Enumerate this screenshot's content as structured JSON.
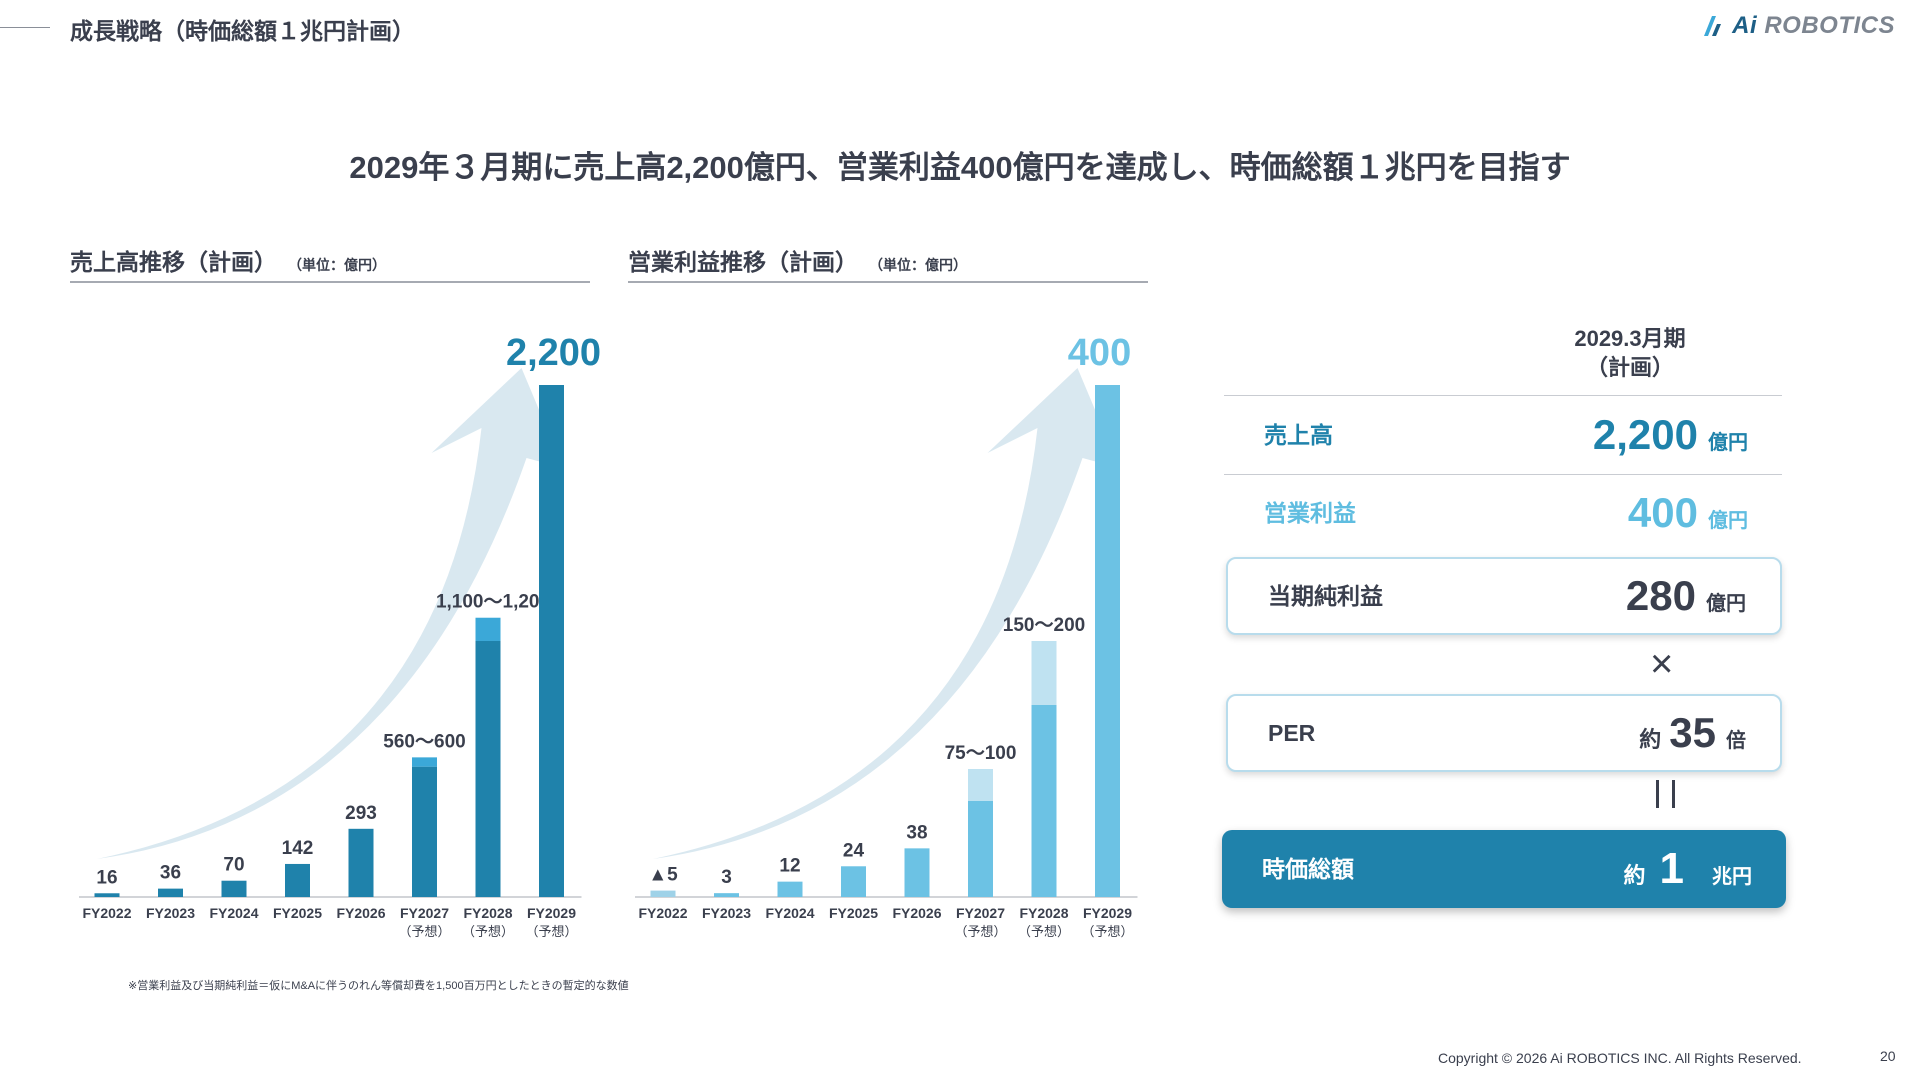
{
  "header": {
    "section_title": "成長戦略（時価総額１兆円計画）",
    "logo_text_ai": "Ai",
    "logo_text_rest": "ROBOTICS"
  },
  "headline": "2029年３月期に売上高2,200億円、営業利益400億円を達成し、時価総額１兆円を目指す",
  "chart_data": [
    {
      "type": "bar",
      "title": "売上高推移（計画）",
      "unit_note": "（単位：億円）",
      "categories": [
        "FY2022",
        "FY2023",
        "FY2024",
        "FY2025",
        "FY2026",
        "FY2027",
        "FY2028",
        "FY2029"
      ],
      "category_sublabels": [
        "",
        "",
        "",
        "",
        "",
        "（予想）",
        "（予想）",
        "（予想）"
      ],
      "series": [
        {
          "values": [
            16,
            36,
            70,
            142,
            293,
            560,
            1100,
            2200
          ]
        },
        {
          "values": [
            0,
            0,
            0,
            0,
            0,
            40,
            100,
            0
          ]
        }
      ],
      "data_labels": [
        "16",
        "36",
        "70",
        "142",
        "293",
        "560〜600",
        "1,100〜1,200",
        "2,200"
      ],
      "ylim": [
        0,
        2200
      ],
      "colors": {
        "bar": "#1f82ab",
        "range": "#3ba8d8",
        "arrow": "#d5e6ee",
        "highlight_label": "#1f82ab"
      }
    },
    {
      "type": "bar",
      "title": "営業利益推移（計画）",
      "unit_note": "（単位：億円）",
      "categories": [
        "FY2022",
        "FY2023",
        "FY2024",
        "FY2025",
        "FY2026",
        "FY2027",
        "FY2028",
        "FY2029"
      ],
      "category_sublabels": [
        "",
        "",
        "",
        "",
        "",
        "（予想）",
        "（予想）",
        "（予想）"
      ],
      "series": [
        {
          "values": [
            -5,
            3,
            12,
            24,
            38,
            75,
            150,
            400
          ]
        },
        {
          "values": [
            0,
            0,
            0,
            0,
            0,
            25,
            50,
            0
          ]
        }
      ],
      "data_labels": [
        "▲5",
        "3",
        "12",
        "24",
        "38",
        "75〜100",
        "150〜200",
        "400"
      ],
      "ylim": [
        0,
        400
      ],
      "colors": {
        "bar": "#6cc2e4",
        "range": "#bfe2f1",
        "arrow": "#d5e6ee",
        "highlight_label": "#6cc2e4"
      }
    }
  ],
  "footnote": "※営業利益及び当期純利益＝仮にM&Aに伴うのれん等償却費を1,500百万円としたときの暫定的な数値",
  "summary": {
    "period_line1": "2029.3月期",
    "period_line2": "（計画）",
    "sales": {
      "label": "売上高",
      "value": "2,200",
      "unit": "億円"
    },
    "operating_profit": {
      "label": "営業利益",
      "value": "400",
      "unit": "億円"
    },
    "net_income": {
      "label": "当期純利益",
      "value": "280",
      "unit": "億円"
    },
    "times_symbol": "×",
    "per": {
      "label": "PER",
      "prefix": "約",
      "value": "35",
      "unit": "倍"
    },
    "market_cap": {
      "label": "時価総額",
      "prefix": "約",
      "value": "1",
      "unit": "兆円"
    }
  },
  "footer": {
    "copyright": "Copyright © 2026 Ai ROBOTICS INC. All Rights Reserved.",
    "page_number": "20"
  }
}
